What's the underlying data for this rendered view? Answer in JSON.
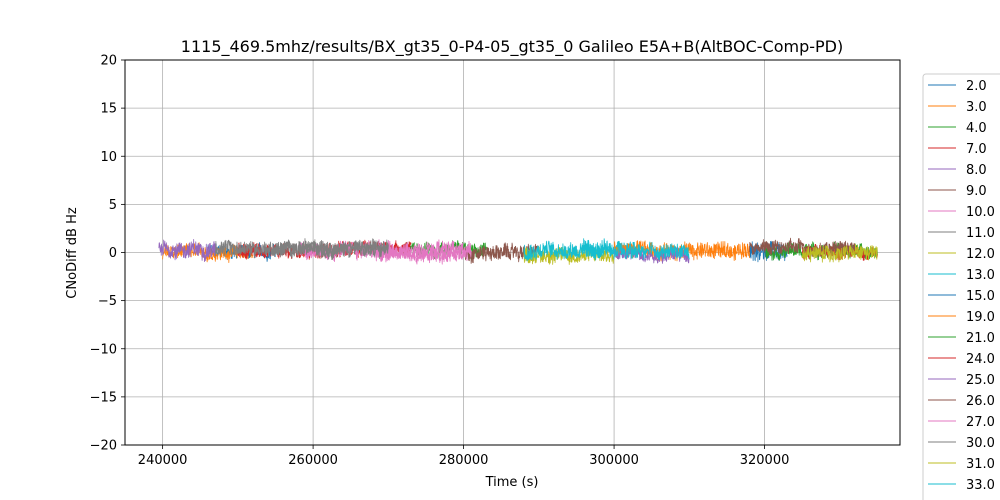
{
  "chart_data": {
    "type": "line",
    "title": "1115_469.5mhz/results/BX_gt35_0-P4-05_gt35_0 Galileo E5A+B(AltBOC-Comp-PD)",
    "xlabel": "Time (s)",
    "ylabel": "CNoDiff dB Hz",
    "xlim": [
      235000,
      338000
    ],
    "ylim": [
      -20,
      20
    ],
    "xticks": [
      240000,
      260000,
      280000,
      300000,
      320000
    ],
    "yticks": [
      -20,
      -15,
      -10,
      -5,
      0,
      5,
      10,
      15,
      20
    ],
    "grid": true,
    "legend_position": "right-outside",
    "series": [
      {
        "name": "2.0",
        "color": "#1f77b4",
        "x_range": [
          246000,
          255000
        ],
        "level": 0.1,
        "amplitude": 0.8
      },
      {
        "name": "3.0",
        "color": "#ff7f0e",
        "x_range": [
          240000,
          252000
        ],
        "level": 0.0,
        "amplitude": 0.8
      },
      {
        "name": "4.0",
        "color": "#2ca02c",
        "x_range": [
          272000,
          283000
        ],
        "level": 0.3,
        "amplitude": 0.8
      },
      {
        "name": "7.0",
        "color": "#d62728",
        "x_range": [
          250000,
          273000
        ],
        "level": 0.2,
        "amplitude": 0.9
      },
      {
        "name": "8.0",
        "color": "#9467bd",
        "x_range": [
          239500,
          247000
        ],
        "level": 0.3,
        "amplitude": 1.0
      },
      {
        "name": "9.0",
        "color": "#8c564b",
        "x_range": [
          280000,
          290000
        ],
        "level": 0.0,
        "amplitude": 0.9
      },
      {
        "name": "10.0",
        "color": "#e377c2",
        "x_range": [
          258000,
          281000
        ],
        "level": 0.3,
        "amplitude": 1.0
      },
      {
        "name": "11.0",
        "color": "#7f7f7f",
        "x_range": [
          247000,
          270000
        ],
        "level": 0.4,
        "amplitude": 0.9
      },
      {
        "name": "12.0",
        "color": "#bcbd22",
        "x_range": [
          288000,
          300000
        ],
        "level": -0.3,
        "amplitude": 0.9
      },
      {
        "name": "13.0",
        "color": "#17becf",
        "x_range": [
          288000,
          303000
        ],
        "level": 0.3,
        "amplitude": 1.0
      },
      {
        "name": "15.0",
        "color": "#1f77b4",
        "x_range": [
          318000,
          323000
        ],
        "level": 0.0,
        "amplitude": 1.3
      },
      {
        "name": "19.0",
        "color": "#ff7f0e",
        "x_range": [
          300000,
          318000
        ],
        "level": 0.2,
        "amplitude": 1.0
      },
      {
        "name": "21.0",
        "color": "#2ca02c",
        "x_range": [
          320000,
          335000
        ],
        "level": 0.2,
        "amplitude": 0.8
      },
      {
        "name": "24.0",
        "color": "#d62728",
        "x_range": [
          325000,
          335000
        ],
        "level": 0.0,
        "amplitude": 0.8
      },
      {
        "name": "25.0",
        "color": "#9467bd",
        "x_range": [
          300000,
          310000
        ],
        "level": -0.2,
        "amplitude": 0.8
      },
      {
        "name": "26.0",
        "color": "#8c564b",
        "x_range": [
          318000,
          332000
        ],
        "level": 0.5,
        "amplitude": 0.8
      },
      {
        "name": "27.0",
        "color": "#e377c2",
        "x_range": [
          268000,
          280000
        ],
        "level": -0.2,
        "amplitude": 0.8
      },
      {
        "name": "30.0",
        "color": "#7f7f7f",
        "x_range": [
          255000,
          270000
        ],
        "level": 0.4,
        "amplitude": 0.8
      },
      {
        "name": "31.0",
        "color": "#bcbd22",
        "x_range": [
          325000,
          335000
        ],
        "level": -0.1,
        "amplitude": 0.9
      },
      {
        "name": "33.0",
        "color": "#17becf",
        "x_range": [
          296000,
          310000
        ],
        "level": 0.1,
        "amplitude": 0.9
      }
    ]
  }
}
